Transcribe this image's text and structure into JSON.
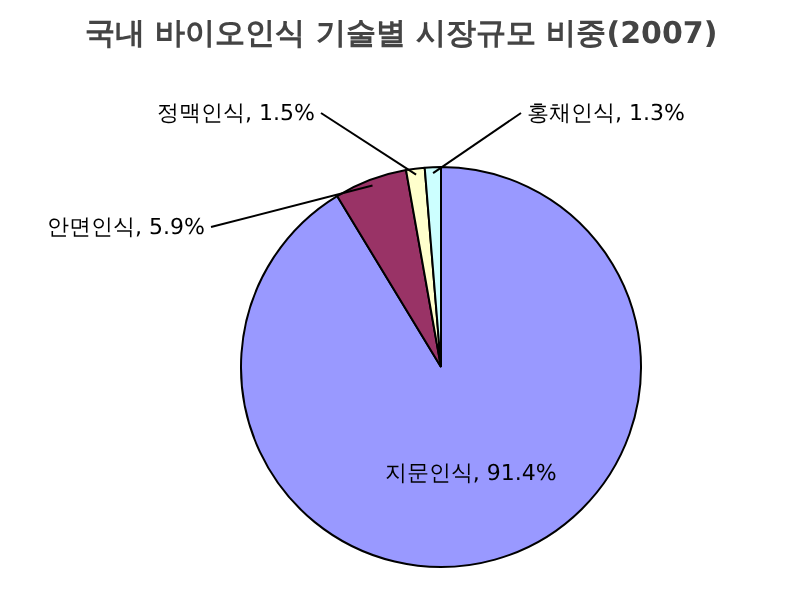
{
  "chart_data": {
    "type": "pie",
    "title": "국내 바이오인식 기술별 시장규모 비중(2007)",
    "categories": [
      "지문인식",
      "안면인식",
      "정맥인식",
      "홍채인식"
    ],
    "values": [
      91.4,
      5.9,
      1.5,
      1.3
    ],
    "value_labels": [
      "91.4%",
      "5.9%",
      "1.5%",
      "1.3%"
    ],
    "colors": [
      "#9999ff",
      "#993366",
      "#ffffcc",
      "#ccffff"
    ]
  }
}
